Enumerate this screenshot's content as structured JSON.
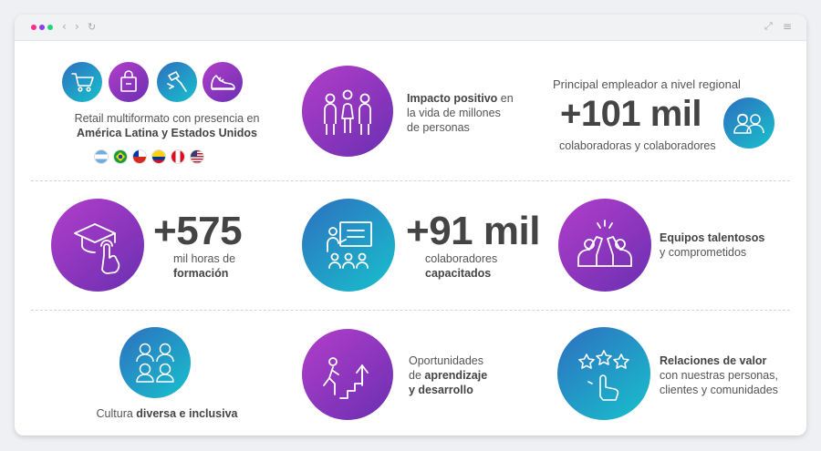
{
  "r1": {
    "retail_text": "Retail multiformato con presencia en",
    "retail_bold": "América Latina y Estados Unidos",
    "impact_bold": "Impacto positivo",
    "impact_text1": " en",
    "impact_text2": "la vida de millones",
    "impact_text3": "de personas",
    "employer_title": "Principal empleador a nivel regional",
    "employer_number": "+101 mil",
    "employer_sub": "colaboradoras y colaboradores"
  },
  "r2": {
    "hours_number": "+575",
    "hours_text": "mil horas de",
    "hours_bold": "formación",
    "trained_number": "+91 mil",
    "trained_text": "colaboradores",
    "trained_bold": "capacitados",
    "teams_bold": "Equipos talentosos",
    "teams_text": "y comprometidos"
  },
  "r3": {
    "culture_text": "Cultura ",
    "culture_bold": "diversa e inclusiva",
    "opp_text": "Oportunidades",
    "opp_text2": "de ",
    "opp_bold1": "aprendizaje",
    "opp_bold2": "y desarrollo",
    "rel_bold": "Relaciones de valor",
    "rel_text1": "con nuestras personas,",
    "rel_text2": "clientes y comunidades"
  },
  "icons": {
    "window_dots": [
      "#ff2d8a",
      "#8a3cf0",
      "#1fd67a"
    ],
    "nav": [
      "‹",
      "›",
      "↻"
    ],
    "right": [
      "⤢",
      "≡"
    ]
  }
}
